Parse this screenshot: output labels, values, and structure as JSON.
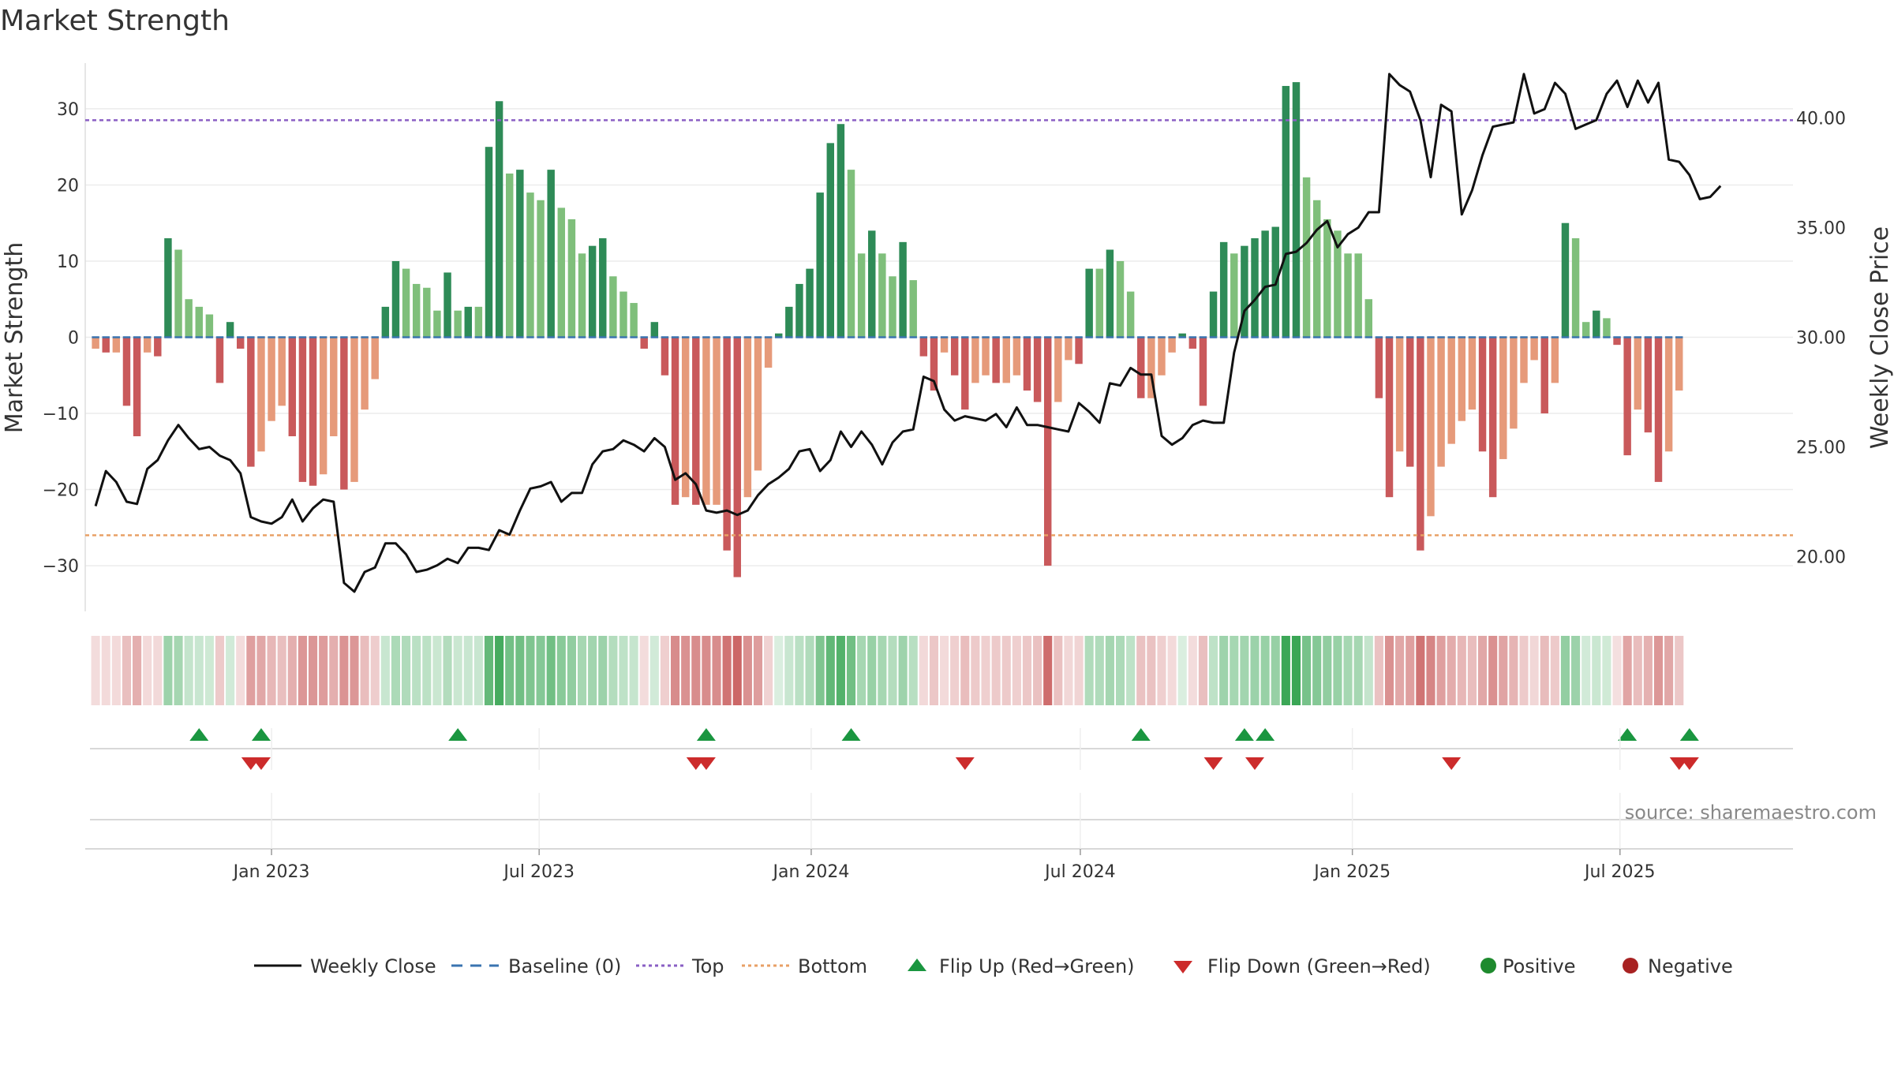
{
  "chart_data": {
    "type": "bar",
    "title": "Market Strength",
    "ylabel_left": "Market Strength",
    "ylabel_right": "Weekly Close Price",
    "source": "source: sharemaestro.com",
    "left_axis": {
      "ylim": [
        -36,
        36
      ],
      "ticks": [
        30,
        20,
        10,
        0,
        -10,
        -20,
        -30
      ],
      "tick_labels": [
        "30",
        "20",
        "10",
        "0",
        "−10",
        "−20",
        "−30"
      ]
    },
    "right_axis": {
      "ylim": [
        17.5,
        42.5
      ],
      "ticks": [
        40,
        35,
        30,
        25,
        20
      ],
      "tick_labels": [
        "40.00",
        "35.00",
        "30.00",
        "25.00",
        "20.00"
      ]
    },
    "x_range": [
      "2022-08-28",
      "2025-10-26"
    ],
    "x_ticks": [
      {
        "date": "2023-01-01",
        "label": "Jan 2023"
      },
      {
        "date": "2023-07-01",
        "label": "Jul 2023"
      },
      {
        "date": "2024-01-01",
        "label": "Jan 2024"
      },
      {
        "date": "2024-07-01",
        "label": "Jul 2024"
      },
      {
        "date": "2025-01-01",
        "label": "Jan 2025"
      },
      {
        "date": "2025-07-01",
        "label": "Jul 2025"
      }
    ],
    "start_date": "2022-09-04",
    "interval_days": 7,
    "top_level": 28.5,
    "bottom_level": -26,
    "strength": [
      -1.5,
      -2,
      -2,
      -9,
      -13,
      -2,
      -2.5,
      13,
      11.5,
      5,
      4,
      3,
      -6,
      2,
      -1.5,
      -17,
      -15,
      -11,
      -9,
      -13,
      -19,
      -19.5,
      -18,
      -13,
      -20,
      -19,
      -9.5,
      -5.5,
      4,
      10,
      9,
      7,
      6.5,
      3.5,
      8.5,
      3.5,
      4,
      4,
      25,
      31,
      21.5,
      22,
      19,
      18,
      22,
      17,
      15.5,
      11,
      12,
      13,
      8,
      6,
      4.5,
      -1.5,
      2,
      -5,
      -22,
      -21,
      -22,
      -22,
      -22,
      -28,
      -31.5,
      -21,
      -17.5,
      -4,
      0.5,
      4,
      7,
      9,
      19,
      25.5,
      28,
      22,
      11,
      14,
      11,
      8,
      12.5,
      7.5,
      -2.5,
      -7,
      -2,
      -5,
      -9.5,
      -6,
      -5,
      -6,
      -6,
      -5,
      -7,
      -8.5,
      -30,
      -8.5,
      -3,
      -3.5,
      9,
      9,
      11.5,
      10,
      6,
      -8,
      -8,
      -5,
      -2,
      0.5,
      -1.5,
      -9,
      6,
      12.5,
      11,
      12,
      13,
      14,
      14.5,
      33,
      33.5,
      21,
      18,
      15.5,
      14,
      11,
      11,
      5,
      -8,
      -21,
      -15,
      -17,
      -28,
      -23.5,
      -17,
      -14,
      -11,
      -9.5,
      -15,
      -21,
      -16,
      -12,
      -6,
      -3,
      -10,
      -6,
      15,
      13,
      2,
      3.5,
      2.5,
      -1,
      -15.5,
      -9.5,
      -12.5,
      -19,
      -15,
      -7
    ],
    "weekly_close": [
      22.3,
      23.9,
      23.4,
      22.5,
      22.4,
      24,
      24.4,
      25.3,
      26,
      25.4,
      24.9,
      25,
      24.6,
      24.4,
      23.8,
      21.8,
      21.6,
      21.5,
      21.8,
      22.6,
      21.6,
      22.2,
      22.6,
      22.5,
      18.8,
      18.4,
      19.3,
      19.5,
      20.6,
      20.6,
      20.1,
      19.3,
      19.4,
      19.6,
      19.9,
      19.7,
      20.4,
      20.4,
      20.3,
      21.2,
      21,
      22.1,
      23.1,
      23.2,
      23.4,
      22.5,
      22.9,
      22.9,
      24.2,
      24.8,
      24.9,
      25.3,
      25.1,
      24.8,
      25.4,
      25,
      23.5,
      23.8,
      23.3,
      22.1,
      22,
      22.1,
      21.9,
      22.1,
      22.8,
      23.3,
      23.6,
      24,
      24.8,
      24.9,
      23.9,
      24.4,
      25.7,
      25,
      25.7,
      25.1,
      24.2,
      25.2,
      25.7,
      25.8,
      28.2,
      28,
      26.7,
      26.2,
      26.4,
      26.3,
      26.2,
      26.5,
      25.9,
      26.8,
      26,
      26,
      25.9,
      25.8,
      25.7,
      27,
      26.6,
      26.1,
      27.9,
      27.8,
      28.6,
      28.3,
      28.3,
      25.5,
      25.1,
      25.4,
      26,
      26.2,
      26.1,
      26.1,
      29.3,
      31.2,
      31.7,
      32.3,
      32.4,
      33.8,
      33.9,
      34.3,
      34.9,
      35.3,
      34.1,
      34.7,
      35,
      35.7,
      35.7,
      42,
      41.5,
      41.2,
      39.9,
      37.3,
      40.6,
      40.3,
      35.6,
      36.7,
      38.3,
      39.6,
      39.7,
      39.8,
      42,
      40.2,
      40.4,
      41.6,
      41.1,
      39.5,
      39.7,
      39.9,
      41.1,
      41.7,
      40.5,
      41.7,
      40.7,
      41.6,
      38.1,
      38,
      37.4,
      36.3,
      36.4,
      36.9
    ],
    "flip_up": [
      "2022-11-13",
      "2022-12-25",
      "2023-05-07",
      "2023-10-22",
      "2024-01-28",
      "2024-08-11",
      "2024-10-20",
      "2024-11-03",
      "2025-07-06",
      "2025-08-17"
    ],
    "flip_down": [
      "2022-12-18",
      "2022-12-25",
      "2023-10-15",
      "2023-10-22",
      "2024-04-14",
      "2024-09-29",
      "2024-10-27",
      "2025-03-09",
      "2025-08-10",
      "2025-08-17"
    ],
    "legend": [
      {
        "label": "Weekly Close",
        "type": "line",
        "color": "#111111"
      },
      {
        "label": "Baseline (0)",
        "type": "dash",
        "color": "#3a74b0"
      },
      {
        "label": "Top",
        "type": "dot",
        "color": "#8a5fc4"
      },
      {
        "label": "Bottom",
        "type": "dot",
        "color": "#e8a066"
      },
      {
        "label": "Flip Up (Red→Green)",
        "type": "tri-up",
        "color": "#1a9640"
      },
      {
        "label": "Flip Down (Green→Red)",
        "type": "tri-down",
        "color": "#cc2b2b"
      },
      {
        "label": "Positive",
        "type": "circle",
        "color": "#1e8a2e"
      },
      {
        "label": "Negative",
        "type": "circle",
        "color": "#a82222"
      }
    ],
    "colors": {
      "pos_strong": "#2e8b57",
      "pos_light": "#7fbf7b",
      "neg_strong": "#c9595b",
      "neg_light": "#e69a7a",
      "strip_pos": "#3aa655",
      "strip_neg": "#c95f5f",
      "flip_up": "#1a9640",
      "flip_down": "#cc2b2b",
      "top_line": "#8a5fc4",
      "bottom_line": "#e8a066",
      "baseline": "#3a74b0"
    }
  }
}
